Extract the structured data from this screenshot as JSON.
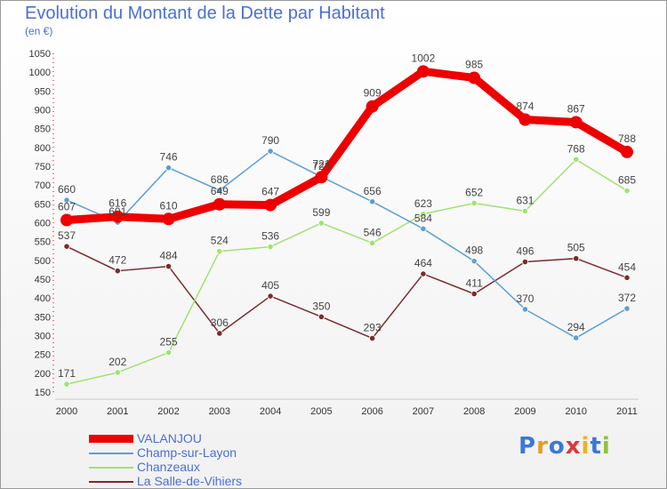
{
  "header": {
    "title": "Evolution du Montant de la Dette par Habitant",
    "subtitle": "(en €)"
  },
  "logo": {
    "text": "Proxiti",
    "colors": [
      "#3a78d8",
      "#e0a020",
      "#3a78d8",
      "#d93a3a",
      "#f0b020",
      "#3a78d8",
      "#8ac43a"
    ]
  },
  "chart_data": {
    "type": "line",
    "title": "Evolution du Montant de la Dette par Habitant",
    "ylabel": "(en €)",
    "xlabel": "",
    "x": [
      "2000",
      "2001",
      "2002",
      "2003",
      "2004",
      "2005",
      "2006",
      "2007",
      "2008",
      "2009",
      "2010",
      "2011"
    ],
    "ylim": [
      150,
      1050
    ],
    "yticks": [
      150,
      200,
      250,
      300,
      350,
      400,
      450,
      500,
      550,
      600,
      650,
      700,
      750,
      800,
      850,
      900,
      950,
      1000,
      1050
    ],
    "grid": false,
    "legend": "bottom-left",
    "series": [
      {
        "name": "VALANJOU",
        "color": "#ee0000",
        "values": [
          607,
          616,
          610,
          649,
          647,
          721,
          909,
          1002,
          985,
          874,
          867,
          788
        ]
      },
      {
        "name": "Champ-sur-Layon",
        "color": "#5a9fd4",
        "values": [
          660,
          601,
          746,
          686,
          790,
          722,
          656,
          584,
          498,
          370,
          294,
          372
        ]
      },
      {
        "name": "Chanzeaux",
        "color": "#9ee36f",
        "values": [
          171,
          202,
          255,
          524,
          536,
          599,
          546,
          623,
          652,
          631,
          768,
          685
        ]
      },
      {
        "name": "La Salle-de-Vihiers",
        "color": "#7a2b2b",
        "values": [
          537,
          472,
          484,
          306,
          405,
          350,
          293,
          464,
          411,
          496,
          505,
          454
        ]
      }
    ]
  }
}
